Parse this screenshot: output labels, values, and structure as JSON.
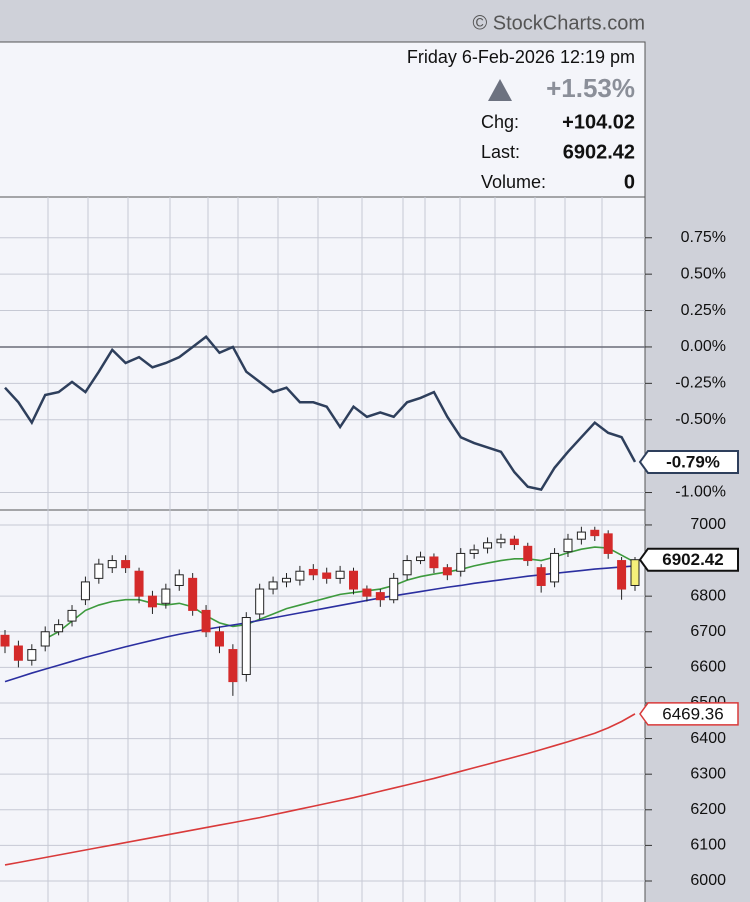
{
  "header": {
    "watermark": "© StockCharts.com",
    "date": "Friday  6-Feb-2026  12:19 pm",
    "change_pct": "+1.53%",
    "chg_label": "Chg:",
    "chg": "+104.02",
    "last_label": "Last:",
    "last": "6902.42",
    "volume_label": "Volume:",
    "volume": 0
  },
  "chart_data": [
    {
      "type": "line",
      "ylim": [
        -1.12,
        1.03
      ],
      "yticks": [
        {
          "value": 0.75,
          "label": "0.75%"
        },
        {
          "value": 0.5,
          "label": "0.50%"
        },
        {
          "value": 0.25,
          "label": "0.25%"
        },
        {
          "value": 0,
          "label": "0.00%"
        },
        {
          "value": -0.25,
          "label": "-0.25%"
        },
        {
          "value": -0.5,
          "label": "-0.50%"
        },
        {
          "value": -1,
          "label": "-1.00%"
        }
      ],
      "grid": true,
      "series": [
        {
          "color": "#2e3f5c",
          "last_label": "-0.79%",
          "values": [
            -0.28,
            -0.38,
            -0.52,
            -0.33,
            -0.31,
            -0.24,
            -0.31,
            -0.17,
            -0.02,
            -0.11,
            -0.07,
            -0.14,
            -0.11,
            -0.07,
            0.0,
            0.07,
            -0.04,
            0.0,
            -0.17,
            -0.24,
            -0.31,
            -0.28,
            -0.38,
            -0.38,
            -0.41,
            -0.55,
            -0.41,
            -0.48,
            -0.45,
            -0.48,
            -0.38,
            -0.35,
            -0.31,
            -0.48,
            -0.62,
            -0.66,
            -0.69,
            -0.72,
            -0.86,
            -0.96,
            -0.98,
            -0.83,
            -0.72,
            -0.62,
            -0.52,
            -0.59,
            -0.62,
            -0.79
          ]
        }
      ]
    },
    {
      "type": "candlestick",
      "ylim": [
        5941,
        7042
      ],
      "yticks": [
        6000,
        6100,
        6200,
        6300,
        6400,
        6500,
        6600,
        6700,
        6800,
        7000
      ],
      "grid": true,
      "up_color": "#ffffff",
      "down_color": "#d42a2a",
      "last_color": "#f5ef7a",
      "last_label": "6902.42",
      "open": [
        6690,
        6660,
        6620,
        6660,
        6700,
        6730,
        6790,
        6850,
        6880,
        6900,
        6870,
        6800,
        6780,
        6830,
        6850,
        6760,
        6700,
        6650,
        6580,
        6750,
        6820,
        6840,
        6845,
        6875,
        6865,
        6850,
        6870,
        6820,
        6810,
        6790,
        6860,
        6900,
        6910,
        6880,
        6870,
        6920,
        6935,
        6950,
        6960,
        6940,
        6880,
        6840,
        6925,
        6960,
        6985,
        6975,
        6900,
        6830
      ],
      "high": [
        6705,
        6675,
        6665,
        6715,
        6735,
        6775,
        6855,
        6905,
        6915,
        6915,
        6880,
        6815,
        6835,
        6875,
        6865,
        6775,
        6715,
        6665,
        6755,
        6835,
        6855,
        6865,
        6885,
        6890,
        6880,
        6885,
        6880,
        6830,
        6820,
        6865,
        6915,
        6925,
        6920,
        6890,
        6935,
        6945,
        6965,
        6975,
        6970,
        6950,
        6890,
        6935,
        6975,
        6995,
        6995,
        6985,
        6910,
        6910
      ],
      "low": [
        6640,
        6600,
        6605,
        6645,
        6690,
        6715,
        6775,
        6835,
        6865,
        6865,
        6780,
        6750,
        6765,
        6815,
        6745,
        6685,
        6640,
        6520,
        6560,
        6735,
        6805,
        6825,
        6830,
        6845,
        6835,
        6835,
        6805,
        6785,
        6770,
        6780,
        6845,
        6890,
        6865,
        6845,
        6855,
        6905,
        6920,
        6935,
        6930,
        6885,
        6810,
        6825,
        6910,
        6945,
        6955,
        6905,
        6790,
        6815
      ],
      "close": [
        6660,
        6620,
        6650,
        6700,
        6720,
        6760,
        6840,
        6890,
        6900,
        6880,
        6800,
        6770,
        6820,
        6860,
        6760,
        6700,
        6660,
        6560,
        6740,
        6820,
        6840,
        6850,
        6870,
        6860,
        6850,
        6870,
        6820,
        6800,
        6790,
        6850,
        6900,
        6910,
        6880,
        6860,
        6920,
        6930,
        6950,
        6960,
        6945,
        6900,
        6830,
        6920,
        6960,
        6980,
        6970,
        6920,
        6820,
        6902.42
      ],
      "overlays": [
        {
          "color": "#3d9a3d",
          "values": [
            null,
            null,
            null,
            6680,
            6700,
            6730,
            6760,
            6775,
            6785,
            6790,
            6790,
            6780,
            6775,
            6780,
            6770,
            6745,
            6725,
            6715,
            6720,
            6735,
            6750,
            6765,
            6775,
            6785,
            6795,
            6805,
            6810,
            6815,
            6820,
            6830,
            6845,
            6855,
            6862,
            6868,
            6875,
            6885,
            6893,
            6900,
            6905,
            6905,
            6900,
            6910,
            6922,
            6932,
            6938,
            6935,
            6915,
            6895
          ]
        },
        {
          "color": "#2b2fa0",
          "values": [
            6560,
            6572,
            6584,
            6595,
            6606,
            6617,
            6628,
            6638,
            6648,
            6658,
            6667,
            6676,
            6685,
            6693,
            6700,
            6707,
            6713,
            6719,
            6725,
            6732,
            6739,
            6746,
            6753,
            6760,
            6767,
            6774,
            6781,
            6788,
            6795,
            6801,
            6807,
            6813,
            6819,
            6825,
            6830,
            6836,
            6841,
            6846,
            6851,
            6856,
            6860,
            6864,
            6868,
            6872,
            6876,
            6879,
            6882,
            6885
          ]
        },
        {
          "color": "#d93a3a",
          "last_label": "6469.36",
          "values": [
            6045,
            6052,
            6059,
            6066,
            6073,
            6080,
            6087,
            6094,
            6101,
            6108,
            6115,
            6122,
            6129,
            6136,
            6143,
            6150,
            6157,
            6164,
            6171,
            6178,
            6186,
            6194,
            6202,
            6210,
            6218,
            6226,
            6234,
            6243,
            6252,
            6261,
            6270,
            6279,
            6288,
            6298,
            6308,
            6318,
            6328,
            6338,
            6348,
            6358,
            6369,
            6380,
            6391,
            6403,
            6415,
            6430,
            6448,
            6469.36
          ]
        }
      ]
    }
  ]
}
